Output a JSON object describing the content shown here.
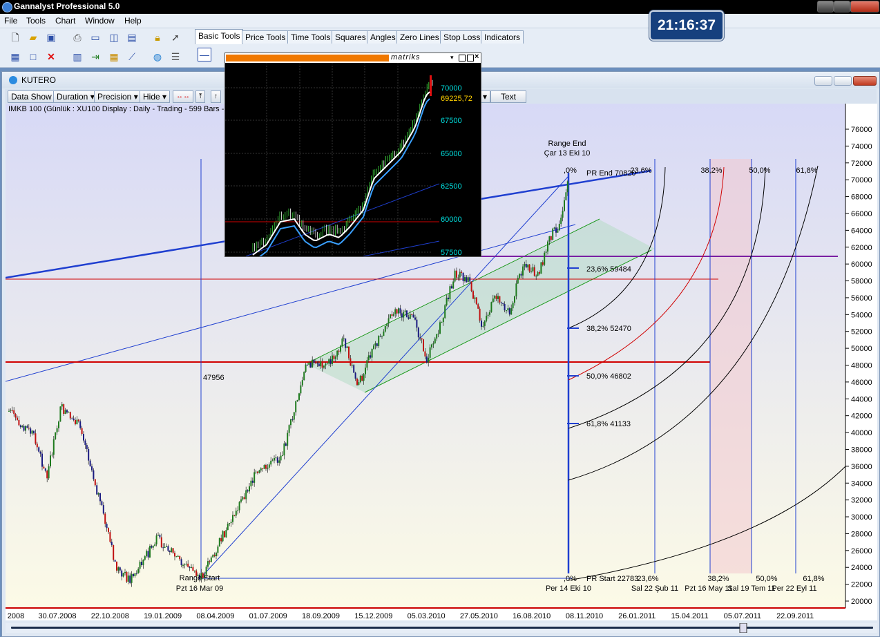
{
  "app": {
    "title": "Gannalyst Professional 5.0"
  },
  "clock": {
    "time": "21:16:37"
  },
  "menu": [
    "File",
    "Tools",
    "Chart",
    "Window",
    "Help"
  ],
  "tool_tabs": [
    "Basic Tools",
    "Price Tools",
    "Time Tools",
    "Squares",
    "Angles",
    "Zero Lines",
    "Stop Loss",
    "Indicators"
  ],
  "child_window": {
    "title": "KUTERO",
    "toolbar": {
      "data_show": "Data Show",
      "duration": "Duration",
      "precision": "Precision",
      "hide": "Hide",
      "text": "Text"
    },
    "info": "IMKB 100 (Günlük : XU100 Display :  Daily  - Trading - 599 Bars -"
  },
  "inset": {
    "brand": "matriks",
    "price_labels": [
      "70000",
      "67500",
      "65000",
      "62500",
      "60000",
      "57500"
    ],
    "current": "69225,72"
  },
  "chart_data": {
    "type": "candlestick",
    "y_ticks": [
      76000,
      74000,
      72000,
      70000,
      68000,
      66000,
      64000,
      62000,
      60000,
      58000,
      56000,
      54000,
      52000,
      50000,
      48000,
      46000,
      44000,
      42000,
      40000,
      38000,
      36000,
      34000,
      32000,
      30000,
      28000,
      26000,
      24000,
      22000,
      20000
    ],
    "ylim": [
      20000,
      77000
    ],
    "x_ticks": [
      "2008",
      "30.07.2008",
      "22.10.2008",
      "19.01.2009",
      "08.04.2009",
      "01.07.2009",
      "18.09.2009",
      "15.12.2009",
      "05.03.2010",
      "27.05.2010",
      "16.08.2010",
      "08.11.2010",
      "26.01.2011",
      "15.04.2011",
      "05.07.2011",
      "22.09.2011"
    ],
    "range_start": {
      "line1": "Range Start",
      "line2": "Pzt 16 Mar 09"
    },
    "range_end": {
      "line1": "Range End",
      "line2": "Çar 13 Eki 10"
    },
    "pr_end": "PR End 70820",
    "pr_start": "PR Start 22783",
    "retracements": [
      "23,6% 59484",
      "38,2% 52470",
      "50,0% 46802",
      "61,8% 41133"
    ],
    "zero_top": ",0%",
    "zero_bottom": ",0%",
    "label_47956": "47956",
    "time_pct_top": [
      "23,6%",
      "38,2%",
      "50,0%",
      "61,8%"
    ],
    "time_pct_bottom": [
      "23,6%",
      "38,2%",
      "50,0%",
      "61,8%"
    ],
    "time_dates": [
      "Per 14 Eki 10",
      "Sal 22 Şub 11",
      "Pzt 16 May 11",
      "Sal 19 Tem 11",
      "Per 22 Eyl 11"
    ],
    "price_series_anchor": [
      {
        "date": "2008-06",
        "close": 42000
      },
      {
        "date": "2008-08",
        "close": 42500
      },
      {
        "date": "2008-10",
        "close": 33000
      },
      {
        "date": "2008-12",
        "close": 25500
      },
      {
        "date": "2009-02",
        "close": 25000
      },
      {
        "date": "2009-03-16",
        "close": 22783
      },
      {
        "date": "2009-06",
        "close": 33000
      },
      {
        "date": "2009-09",
        "close": 44000
      },
      {
        "date": "2009-11",
        "close": 50500
      },
      {
        "date": "2010-01",
        "close": 55000
      },
      {
        "date": "2010-04",
        "close": 59500
      },
      {
        "date": "2010-06",
        "close": 53000
      },
      {
        "date": "2010-08",
        "close": 60000
      },
      {
        "date": "2010-10-13",
        "close": 70820
      }
    ]
  },
  "colors": {
    "accent": "#0000ff",
    "red": "#d00000",
    "purple": "#7a1fa2",
    "green": "#1c9a1c"
  }
}
